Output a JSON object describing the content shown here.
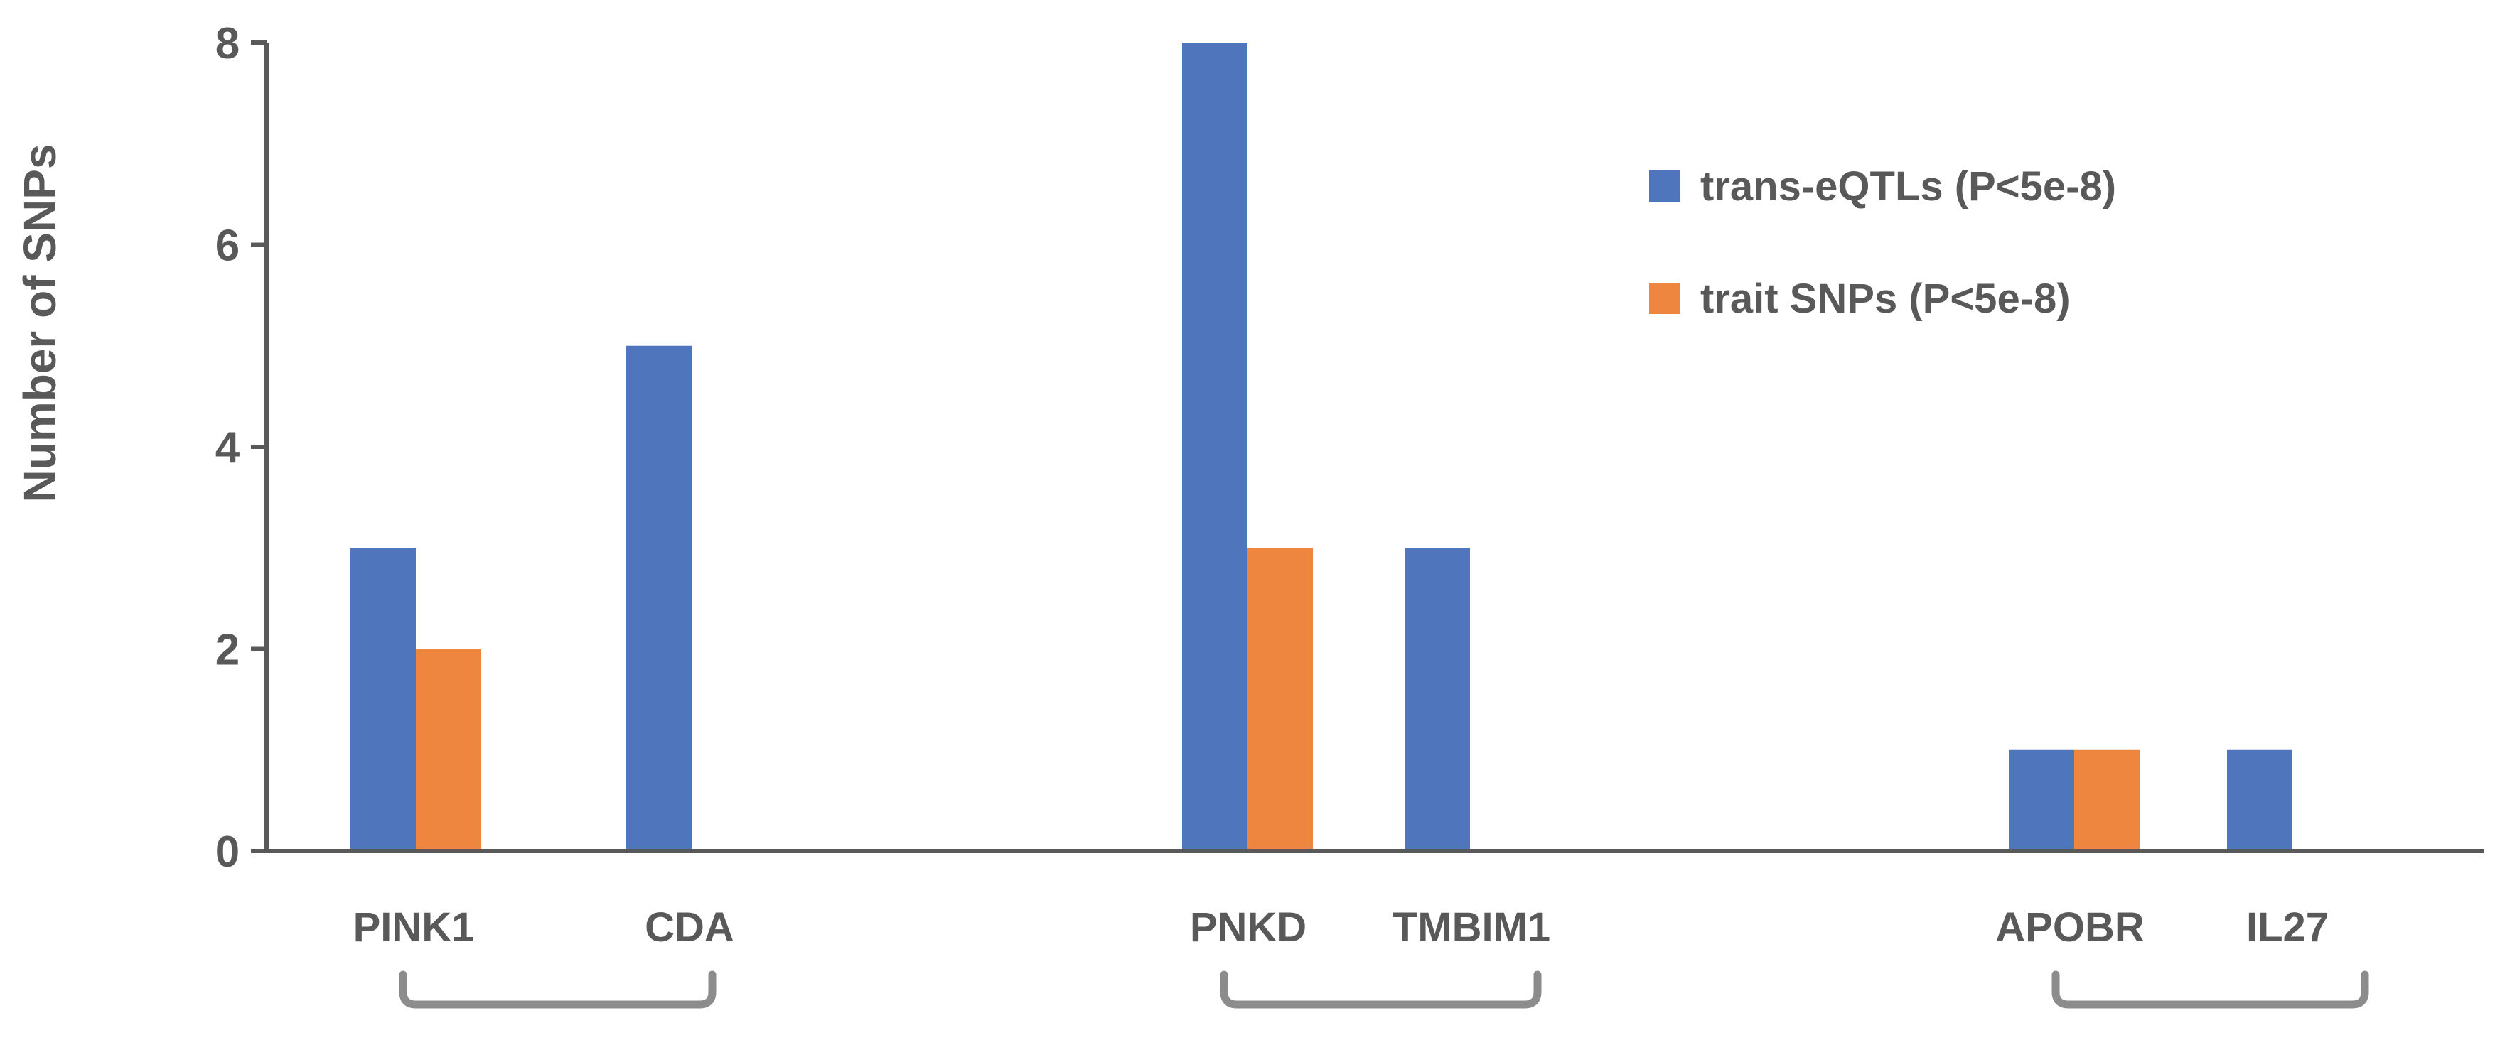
{
  "chart_data": {
    "type": "bar",
    "ylabel": "Number of SNPs",
    "ylim": [
      0,
      8
    ],
    "yticks": [
      0,
      2,
      4,
      6,
      8
    ],
    "grid": false,
    "legend_position": "top-right",
    "categories": [
      "PINK1",
      "CDA",
      "PNKD",
      "TMBIM1",
      "APOBR",
      "IL27"
    ],
    "series": [
      {
        "name": "trans-eQTLs (P<5e-8)",
        "color": "#4F76BD",
        "values": [
          3,
          5,
          8,
          3,
          1,
          1
        ]
      },
      {
        "name": "trait SNPs (P<5e-8)",
        "color": "#EE8640",
        "values": [
          2,
          0,
          3,
          0,
          1,
          0
        ]
      }
    ],
    "category_groups": [
      [
        "PINK1",
        "CDA"
      ],
      [
        "PNKD",
        "TMBIM1"
      ],
      [
        "APOBR",
        "IL27"
      ]
    ],
    "axis_color": "#595959",
    "bracket_color": "#8C8C8C"
  }
}
